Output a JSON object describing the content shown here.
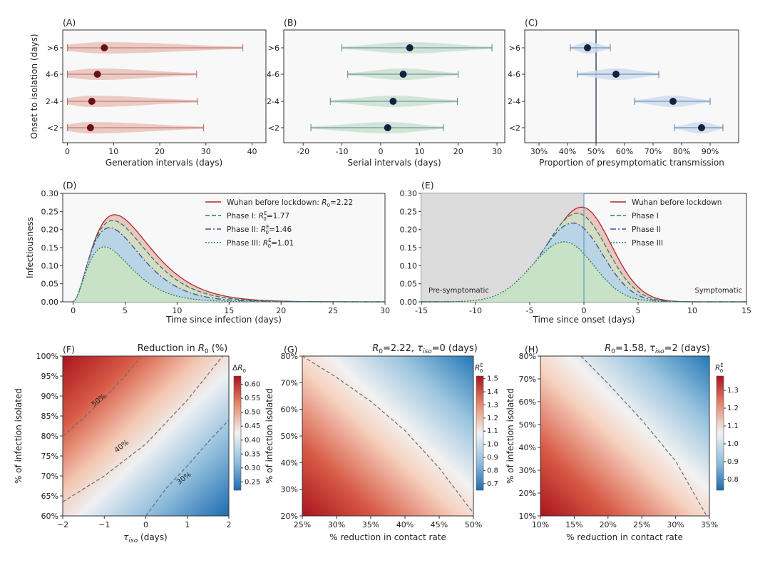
{
  "panels": {
    "a": "(A)",
    "b": "(B)",
    "c": "(C)",
    "d": "(D)",
    "e": "(E)",
    "f": "(F)",
    "g": "(G)",
    "h": "(H)"
  },
  "chart_data": [
    {
      "panel": "(A)",
      "type": "violin",
      "categories": [
        ">6",
        "4-6",
        "2-4",
        "<2"
      ],
      "ylabel": "Onset to isolation (days)",
      "xlabel": "Generation intervals (days)",
      "xlim": [
        -1,
        43
      ],
      "xticks": [
        0,
        10,
        20,
        30,
        40
      ],
      "summary": [
        {
          "category": ">6",
          "mean": 8.0,
          "low": 0.0,
          "high": 38.0
        },
        {
          "category": "4-6",
          "mean": 6.5,
          "low": 0.0,
          "high": 28.0
        },
        {
          "category": "2-4",
          "mean": 5.3,
          "low": 0.0,
          "high": 28.2
        },
        {
          "category": "<2",
          "mean": 5.0,
          "low": 0.0,
          "high": 29.5
        }
      ],
      "colors": {
        "violin": "#e9c2b8",
        "dot": "#67121b",
        "whisker": "#b56a6a"
      }
    },
    {
      "panel": "(B)",
      "type": "violin",
      "categories": [
        ">6",
        "4-6",
        "2-4",
        "<2"
      ],
      "xlabel": "Serial intervals (days)",
      "xlim": [
        -25,
        32
      ],
      "xticks": [
        -20,
        -10,
        0,
        10,
        20,
        30
      ],
      "summary": [
        {
          "category": ">6",
          "mean": 7.5,
          "low": -10.0,
          "high": 28.7
        },
        {
          "category": "4-6",
          "mean": 5.8,
          "low": -8.5,
          "high": 20.0
        },
        {
          "category": "2-4",
          "mean": 3.2,
          "low": -13.0,
          "high": 19.8
        },
        {
          "category": "<2",
          "mean": 1.8,
          "low": -18.0,
          "high": 16.2
        }
      ],
      "colors": {
        "violin": "#c9e2cf",
        "dot": "#14203d",
        "whisker": "#5b7fa3"
      }
    },
    {
      "panel": "(C)",
      "type": "violin",
      "categories": [
        ">6",
        "4-6",
        "2-4",
        "<2"
      ],
      "xlabel": "Proportion of presymptomatic transmission",
      "xlim": [
        25,
        100
      ],
      "xticks": [
        30,
        40,
        50,
        60,
        70,
        80,
        90
      ],
      "xtick_labels": [
        "30%",
        "40%",
        "50%",
        "60%",
        "70%",
        "80%",
        "90%"
      ],
      "vline": 50,
      "summary": [
        {
          "category": ">6",
          "mean": 47,
          "low": 41,
          "high": 55
        },
        {
          "category": "4-6",
          "mean": 57,
          "low": 43.5,
          "high": 72
        },
        {
          "category": "2-4",
          "mean": 77,
          "low": 63.5,
          "high": 90
        },
        {
          "category": "<2",
          "mean": 87,
          "low": 77.5,
          "high": 94.5
        }
      ],
      "colors": {
        "violin": "#cfdcef",
        "dot": "#14203d",
        "whisker": "#5b7fa3"
      }
    },
    {
      "panel": "(D)",
      "type": "area",
      "xlabel": "Time since infection (days)",
      "ylabel": "Infectiousness",
      "xlim": [
        -1,
        30
      ],
      "ylim": [
        0,
        0.3
      ],
      "xticks": [
        0,
        5,
        10,
        15,
        20,
        25,
        30
      ],
      "yticks": [
        0.0,
        0.05,
        0.1,
        0.15,
        0.2,
        0.25,
        0.3
      ],
      "ytick_labels": [
        "0.00",
        "0.05",
        "0.10",
        "0.15",
        "0.20",
        "0.25",
        "0.30"
      ],
      "series": [
        {
          "name_prefix": "Wuhan before lockdown: ",
          "name_symbol": "R",
          "name_sub": "0",
          "name_sup": "",
          "name_value": "=2.22",
          "peak": 0.241,
          "peak_t": 4.0,
          "spread": 4.4,
          "color": "#b0282a",
          "fill": "#e8c4bd",
          "dash": ""
        },
        {
          "name_prefix": "Phase   I: ",
          "name_symbol": "R",
          "name_sub": "0",
          "name_sup": "E",
          "name_value": "=1.77",
          "peak": 0.225,
          "peak_t": 3.8,
          "spread": 3.9,
          "color": "#2e7a6e",
          "fill": "#d3ddc2",
          "dash": "6,3"
        },
        {
          "name_prefix": "Phase  II: ",
          "name_symbol": "R",
          "name_sub": "0",
          "name_sup": "E",
          "name_value": "=1.46",
          "peak": 0.205,
          "peak_t": 3.5,
          "spread": 3.4,
          "color": "#3d4f9a",
          "fill": "#b7d3e6",
          "dash": "8,3,2,3"
        },
        {
          "name_prefix": "Phase III: ",
          "name_symbol": "R",
          "name_sub": "0",
          "name_sup": "E",
          "name_value": "=1.01",
          "peak": 0.152,
          "peak_t": 3.0,
          "spread": 3.0,
          "color": "#2f7d55",
          "fill": "#c8e3c6",
          "dash": "2,2"
        }
      ]
    },
    {
      "panel": "(E)",
      "type": "area",
      "xlabel": "Time since onset (days)",
      "xlim": [
        -15,
        15
      ],
      "ylim": [
        0,
        0.3
      ],
      "xticks": [
        -15,
        -10,
        -5,
        0,
        5,
        10,
        15
      ],
      "yticks": [
        0.0,
        0.05,
        0.1,
        0.15,
        0.2,
        0.25,
        0.3
      ],
      "ytick_labels": [
        "0.00",
        "0.05",
        "0.10",
        "0.15",
        "0.20",
        "0.25",
        "0.30"
      ],
      "vline": 0,
      "annotations": [
        "Pre-symptomatic",
        "Symptomatic"
      ],
      "series": [
        {
          "name": "Wuhan before lockdown",
          "peak": 0.262,
          "peak_t": -0.2,
          "color": "#b0282a",
          "fill": "#e8c4bd",
          "dash": ""
        },
        {
          "name": "Phase   I",
          "peak": 0.245,
          "peak_t": -0.6,
          "color": "#2e7a6e",
          "fill": "#d3ddc2",
          "dash": "6,3"
        },
        {
          "name": "Phase   II",
          "peak": 0.218,
          "peak_t": -1.0,
          "color": "#3d4f9a",
          "fill": "#b7d3e6",
          "dash": "8,3,2,3"
        },
        {
          "name": "Phase III",
          "peak": 0.166,
          "peak_t": -1.8,
          "color": "#2f7d55",
          "fill": "#c8e3c6",
          "dash": "2,2"
        }
      ]
    },
    {
      "panel": "(F)",
      "type": "heatmap",
      "title_prefix": "Reduction in ",
      "title_symbol": "R",
      "title_sub": "0",
      "title_suffix": " (%)",
      "xlabel_symbol": "τ",
      "xlabel_sub": "iso",
      "xlabel_suffix": " (days)",
      "ylabel": "% of infection isolated",
      "xlim": [
        -2,
        2
      ],
      "ylim": [
        60,
        100
      ],
      "xticks": [
        -2,
        -1,
        0,
        1,
        2
      ],
      "xtick_labels": [
        "−2",
        "−1",
        "0",
        "1",
        "2"
      ],
      "yticks": [
        60,
        65,
        70,
        75,
        80,
        85,
        90,
        95,
        100
      ],
      "ytick_labels": [
        "60%",
        "65%",
        "70%",
        "75%",
        "80%",
        "85%",
        "90%",
        "95%",
        "100%"
      ],
      "colorbar": {
        "label_prefix": "Δ",
        "label_symbol": "R",
        "label_sub": "0",
        "min": 0.22,
        "max": 0.63,
        "ticks": [
          0.25,
          0.3,
          0.35,
          0.4,
          0.45,
          0.5,
          0.55,
          0.6
        ],
        "tick_labels": [
          "0.25",
          "0.30",
          "0.35",
          "0.40",
          "0.45",
          "0.50",
          "0.55",
          "0.60"
        ]
      },
      "contours": [
        {
          "label": "50%"
        },
        {
          "label": "40%"
        },
        {
          "label": "30%"
        }
      ]
    },
    {
      "panel": "(G)",
      "type": "heatmap",
      "title_prefix": "",
      "title_symbol": "R",
      "title_sub": "0",
      "title_suffix": "=2.22, ",
      "title_tau_sub": "iso",
      "title_tau_value": "=0 (days)",
      "xlabel": "% reduction in contact rate",
      "ylabel": "% of infection isolated",
      "xlim": [
        25,
        50
      ],
      "ylim": [
        20,
        80
      ],
      "xticks": [
        25,
        30,
        35,
        40,
        45,
        50
      ],
      "xtick_labels": [
        "25%",
        "30%",
        "35%",
        "40%",
        "45%",
        "50%"
      ],
      "yticks": [
        20,
        30,
        40,
        50,
        60,
        70,
        80
      ],
      "ytick_labels": [
        "20%",
        "30%",
        "40%",
        "50%",
        "60%",
        "70%",
        "80%"
      ],
      "colorbar": {
        "label_symbol": "R",
        "label_sub": "0",
        "label_sup": "E",
        "min": 0.65,
        "max": 1.52,
        "ticks": [
          0.7,
          0.8,
          0.9,
          1.0,
          1.1,
          1.2,
          1.3,
          1.4,
          1.5
        ],
        "tick_labels": [
          "0.7",
          "0.8",
          "0.9",
          "1.0",
          "1.1",
          "1.2",
          "1.3",
          "1.4",
          "1.5"
        ]
      }
    },
    {
      "panel": "(H)",
      "type": "heatmap",
      "title_prefix": "",
      "title_symbol": "R",
      "title_sub": "0",
      "title_suffix": "=1.58, ",
      "title_tau_sub": "iso",
      "title_tau_value": "=2 (days)",
      "xlabel": "% reduction in contact rate",
      "ylabel": "% of infection isolated",
      "xlim": [
        10,
        35
      ],
      "ylim": [
        10,
        80
      ],
      "xticks": [
        10,
        15,
        20,
        25,
        30,
        35
      ],
      "xtick_labels": [
        "10%",
        "15%",
        "20%",
        "25%",
        "30%",
        "35%"
      ],
      "yticks": [
        10,
        20,
        30,
        40,
        50,
        60,
        70,
        80
      ],
      "ytick_labels": [
        "10%",
        "20%",
        "30%",
        "40%",
        "50%",
        "60%",
        "70%",
        "80%"
      ],
      "colorbar": {
        "label_symbol": "R",
        "label_sub": "0",
        "label_sup": "E",
        "min": 0.74,
        "max": 1.38,
        "ticks": [
          0.8,
          0.9,
          1.0,
          1.1,
          1.2,
          1.3
        ],
        "tick_labels": [
          "0.8",
          "0.9",
          "1.0",
          "1.1",
          "1.2",
          "1.3"
        ]
      }
    }
  ]
}
